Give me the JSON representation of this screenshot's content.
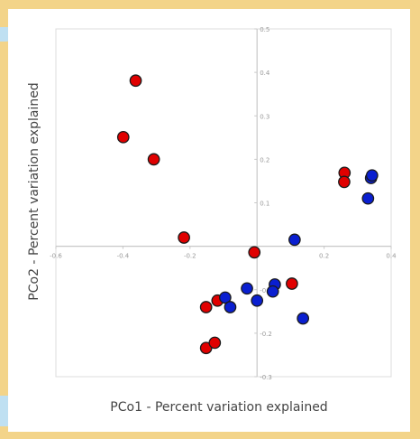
{
  "chart_data": {
    "type": "scatter",
    "title": "",
    "xlabel": "PCo1 - Percent variation explained",
    "ylabel": "PCo2 - Percent variation explained",
    "xlim": [
      -0.6,
      0.4
    ],
    "ylim": [
      -0.3,
      0.5
    ],
    "x_ticks": [
      -0.6,
      -0.4,
      -0.2,
      0,
      0.2,
      0.4
    ],
    "x_tick_labels": [
      "-0.6",
      "-0.4",
      "-0.2",
      "0",
      "0.2",
      "0.4"
    ],
    "y_ticks": [
      -0.3,
      -0.2,
      -0.1,
      0,
      0.1,
      0.2,
      0.3,
      0.4,
      0.5
    ],
    "y_tick_labels": [
      "-0.3",
      "-0.2",
      "-0.1",
      "0",
      "0.1",
      "0.2",
      "0.3",
      "0.4",
      "0.5"
    ],
    "grid": false,
    "legend": "none",
    "series": [
      {
        "color": "#e00000",
        "points": [
          {
            "x": -0.362,
            "y": 0.381
          },
          {
            "x": -0.399,
            "y": 0.251
          },
          {
            "x": -0.308,
            "y": 0.2
          },
          {
            "x": -0.218,
            "y": 0.02
          },
          {
            "x": -0.008,
            "y": -0.014
          },
          {
            "x": -0.152,
            "y": -0.14
          },
          {
            "x": -0.118,
            "y": -0.125
          },
          {
            "x": 0.104,
            "y": -0.086
          },
          {
            "x": -0.152,
            "y": -0.234
          },
          {
            "x": -0.126,
            "y": -0.222
          },
          {
            "x": 0.261,
            "y": 0.169
          },
          {
            "x": 0.26,
            "y": 0.148
          }
        ]
      },
      {
        "color": "#0a1fd0",
        "points": [
          {
            "x": 0.112,
            "y": 0.015
          },
          {
            "x": -0.095,
            "y": -0.118
          },
          {
            "x": -0.08,
            "y": -0.14
          },
          {
            "x": -0.03,
            "y": -0.097
          },
          {
            "x": 0.0,
            "y": -0.125
          },
          {
            "x": 0.053,
            "y": -0.088
          },
          {
            "x": 0.047,
            "y": -0.104
          },
          {
            "x": 0.137,
            "y": -0.166
          },
          {
            "x": 0.331,
            "y": 0.11
          },
          {
            "x": 0.34,
            "y": 0.157
          },
          {
            "x": 0.343,
            "y": 0.163
          }
        ]
      }
    ]
  }
}
